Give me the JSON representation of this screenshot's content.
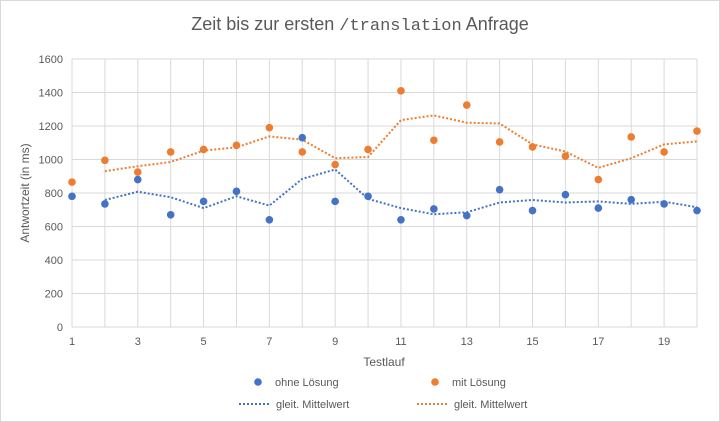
{
  "chart_data": {
    "type": "scatter",
    "title": {
      "prefix": "Zeit bis zur ersten ",
      "code": "/translation",
      "suffix": " Anfrage"
    },
    "xlabel": "Testlauf",
    "ylabel": "Antwortzeit (in ms)",
    "xlim": [
      1,
      20
    ],
    "ylim": [
      0,
      1600
    ],
    "x_ticks": [
      1,
      3,
      5,
      7,
      9,
      11,
      13,
      15,
      17,
      19
    ],
    "y_ticks": [
      0,
      200,
      400,
      600,
      800,
      1000,
      1200,
      1400,
      1600
    ],
    "grid": true,
    "legend_position": "bottom",
    "x": [
      1,
      2,
      3,
      4,
      5,
      6,
      7,
      8,
      9,
      10,
      11,
      12,
      13,
      14,
      15,
      16,
      17,
      18,
      19,
      20
    ],
    "series": [
      {
        "name": "ohne Lösung",
        "color": "#4472c4",
        "values": [
          780,
          735,
          880,
          670,
          750,
          810,
          640,
          1130,
          750,
          780,
          640,
          705,
          665,
          820,
          695,
          790,
          710,
          760,
          735,
          695
        ]
      },
      {
        "name": "mit Lösung",
        "color": "#ed7d31",
        "values": [
          865,
          995,
          925,
          1045,
          1060,
          1085,
          1190,
          1045,
          970,
          1060,
          1410,
          1115,
          1325,
          1105,
          1075,
          1020,
          880,
          1135,
          1045,
          1170
        ]
      }
    ],
    "trendlines": [
      {
        "name": "gleit. Mittelwert",
        "color": "#4472c4",
        "x": [
          2,
          3,
          4,
          5,
          6,
          7,
          8,
          9,
          10,
          11,
          12,
          13,
          14,
          15,
          16,
          17,
          18,
          19,
          20
        ],
        "values": [
          758,
          808,
          775,
          710,
          780,
          725,
          885,
          940,
          765,
          710,
          673,
          685,
          743,
          758,
          743,
          750,
          735,
          748,
          715
        ]
      },
      {
        "name": "gleit. Mittelwert",
        "color": "#ed7d31",
        "x": [
          2,
          3,
          4,
          5,
          6,
          7,
          8,
          9,
          10,
          11,
          12,
          13,
          14,
          15,
          16,
          17,
          18,
          19,
          20
        ],
        "values": [
          930,
          960,
          985,
          1053,
          1073,
          1138,
          1118,
          1008,
          1015,
          1235,
          1263,
          1220,
          1215,
          1090,
          1048,
          950,
          1008,
          1090,
          1108
        ]
      }
    ]
  }
}
